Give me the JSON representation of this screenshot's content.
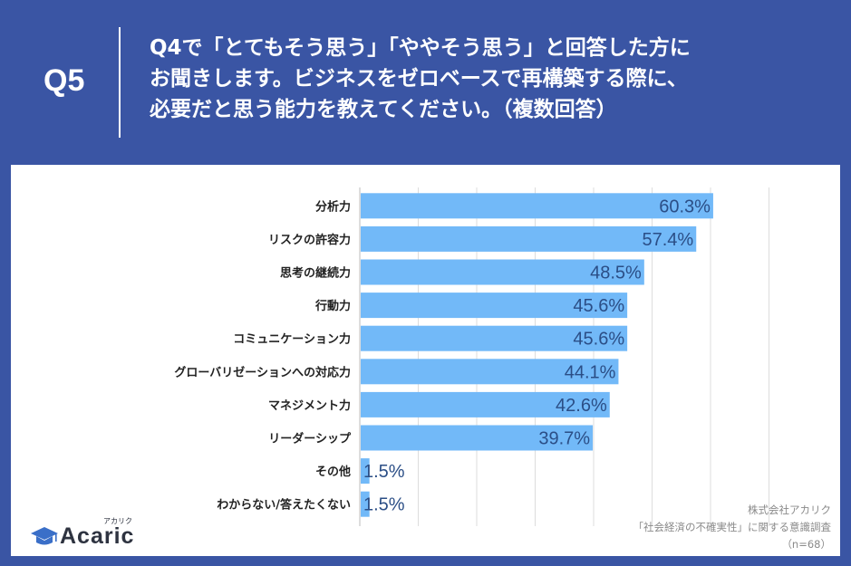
{
  "header": {
    "qnum": "Q5",
    "question_lines": [
      "Q4で「とてもそう思う」「ややそう思う」と回答した方に",
      "お聞きします。ビジネスをゼロベースで再構築する際に、",
      "必要だと思う能力を教えてください。（複数回答）"
    ]
  },
  "colors": {
    "background": "#3A55A4",
    "bar": "#72B9F8",
    "value_text": "#2B4E86",
    "grid": "#DDDDDD"
  },
  "chart_data": {
    "type": "bar",
    "orientation": "horizontal",
    "categories": [
      "分析力",
      "リスクの許容力",
      "思考の継続力",
      "行動力",
      "コミュニケーション力",
      "グローバリゼーションへの対応力",
      "マネジメント力",
      "リーダーシップ",
      "その他",
      "わからない/答えたくない"
    ],
    "values": [
      60.3,
      57.4,
      48.5,
      45.6,
      45.6,
      44.1,
      42.6,
      39.7,
      1.5,
      1.5
    ],
    "value_labels": [
      "60.3%",
      "57.4%",
      "48.5%",
      "45.6%",
      "45.6%",
      "44.1%",
      "42.6%",
      "39.7%",
      "1.5%",
      "1.5%"
    ],
    "xlim": [
      0,
      70
    ],
    "grid": true,
    "legend": "none"
  },
  "logo": {
    "name": "Acaric",
    "kana": "アカリク",
    "icon": "graduation-cap-icon"
  },
  "source": {
    "lines": [
      "株式会社アカリク",
      "「社会経済の不確実性」に関する意識調査",
      "（n=68）"
    ]
  }
}
